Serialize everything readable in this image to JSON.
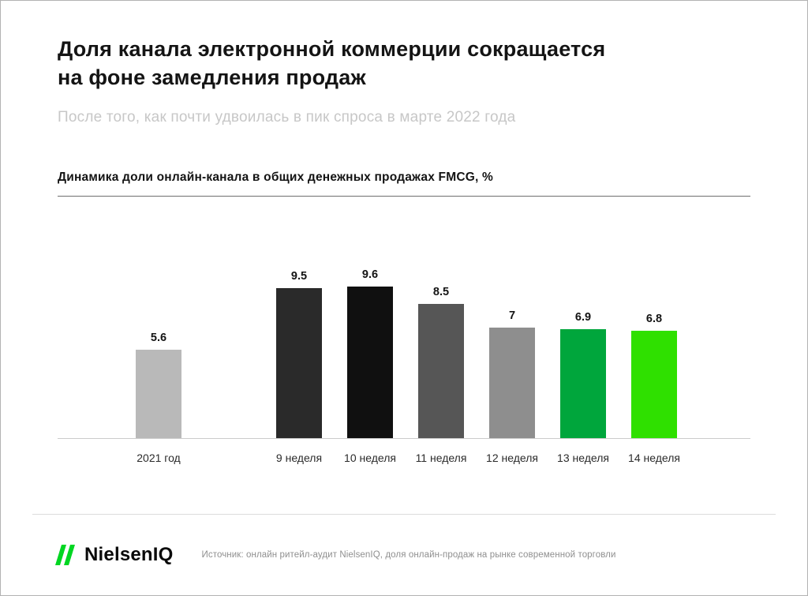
{
  "header": {
    "title_line1": "Доля канала электронной коммерции сокращается",
    "title_line2": "на фоне замедления продаж",
    "subtitle": "После того, как почти удвоилась в пик спроса в марте 2022 года"
  },
  "chart_data": {
    "type": "bar",
    "title": "Динамика доли онлайн-канала в общих денежных продажах FMCG, %",
    "categories": [
      "2021 год",
      "9 неделя",
      "10 неделя",
      "11 неделя",
      "12 неделя",
      "13 неделя",
      "14 неделя"
    ],
    "values": [
      5.6,
      9.5,
      9.6,
      8.5,
      7,
      6.9,
      6.8
    ],
    "value_labels": [
      "5.6",
      "9.5",
      "9.6",
      "8.5",
      "7",
      "6.9",
      "6.8"
    ],
    "bar_colors": [
      "#b9b9b9",
      "#2a2a2a",
      "#101010",
      "#565656",
      "#8e8e8e",
      "#00a63c",
      "#2fe000"
    ],
    "xlabel": "",
    "ylabel": "",
    "ylim": [
      0,
      10
    ],
    "grid": false,
    "legend": false,
    "value_labels_position": "above-bars"
  },
  "footer": {
    "brand": "NielsenIQ",
    "brand_green": "#00d622",
    "source": "Источник: онлайн ритейл-аудит NielsenIQ, доля онлайн-продаж на рынке современной торговли"
  }
}
